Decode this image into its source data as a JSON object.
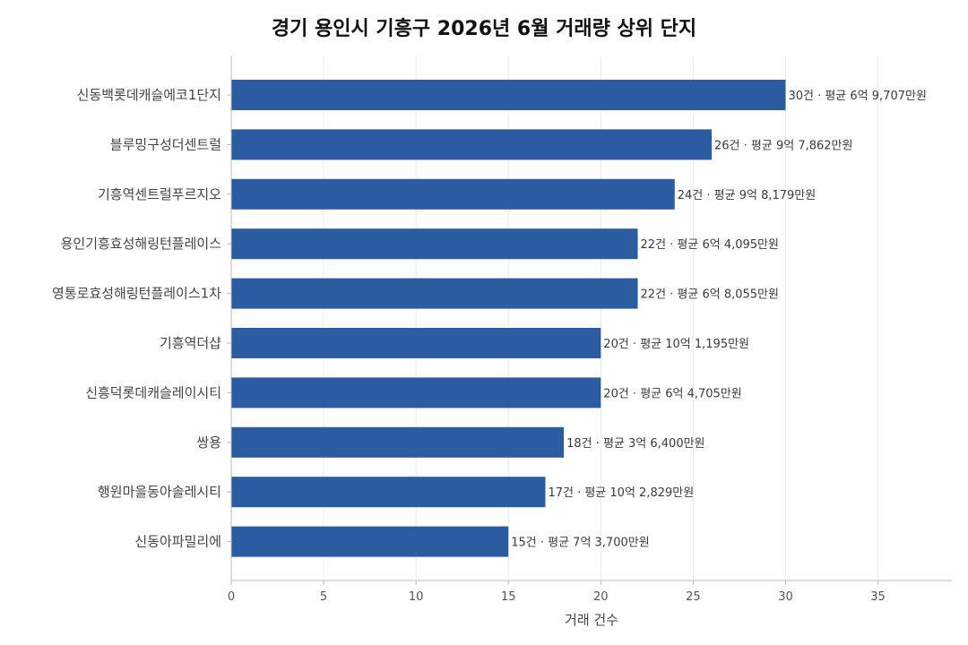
{
  "chart_data": {
    "type": "bar",
    "orientation": "horizontal",
    "title": "경기 용인시 기흥구 2026년 6월 거래량 상위 단지",
    "xlabel": "거래 건수",
    "ylabel": "",
    "xlim": [
      0,
      39
    ],
    "xticks": [
      0,
      5,
      10,
      15,
      20,
      25,
      30,
      35
    ],
    "grid": "vertical",
    "bar_color": "#2b5ba1",
    "categories": [
      "신동백롯데캐슬에코1단지",
      "블루밍구성더센트럴",
      "기흥역센트럴푸르지오",
      "용인기흥효성해링턴플레이스",
      "영통로효성해링턴플레이스1차",
      "기흥역더샵",
      "신흥덕롯데캐슬레이시티",
      "쌍용",
      "행원마을동아솔레시티",
      "신동아파밀리에"
    ],
    "values": [
      30,
      26,
      24,
      22,
      22,
      20,
      20,
      18,
      17,
      15
    ],
    "data_labels": [
      "30건 · 평균 6억 9,707만원",
      "26건 · 평균 9억 7,862만원",
      "24건 · 평균 9억 8,179만원",
      "22건 · 평균 6억 4,095만원",
      "22건 · 평균 6억 8,055만원",
      "20건 · 평균 10억 1,195만원",
      "20건 · 평균 6억 4,705만원",
      "18건 · 평균 3억 6,400만원",
      "17건 · 평균 10억 2,829만원",
      "15건 · 평균 7억 3,700만원"
    ]
  }
}
